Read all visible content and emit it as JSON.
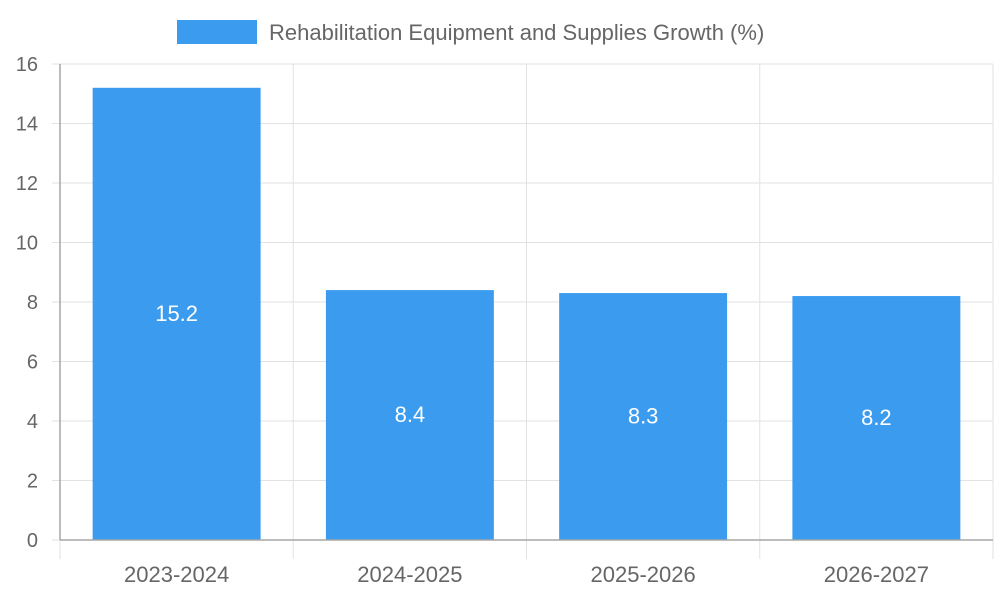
{
  "chart_data": {
    "type": "bar",
    "title": "",
    "xlabel": "",
    "ylabel": "",
    "categories": [
      "2023-2024",
      "2024-2025",
      "2025-2026",
      "2026-2027"
    ],
    "series": [
      {
        "name": "Rehabilitation Equipment and Supplies Growth (%)",
        "values": [
          15.2,
          8.4,
          8.3,
          8.2
        ],
        "color": "#3a9bef"
      }
    ],
    "ylim": [
      0,
      16
    ],
    "yticks": [
      0,
      2,
      4,
      6,
      8,
      10,
      12,
      14,
      16
    ],
    "grid": true,
    "legend": "top-center",
    "data_labels": [
      "15.2",
      "8.4",
      "8.3",
      "8.2"
    ],
    "colors": {
      "bar": "#3a9bef",
      "grid": "#e2e2e2",
      "axis": "#a6a6a6",
      "tick_text": "#666666",
      "label_text": "#ffffff"
    }
  }
}
